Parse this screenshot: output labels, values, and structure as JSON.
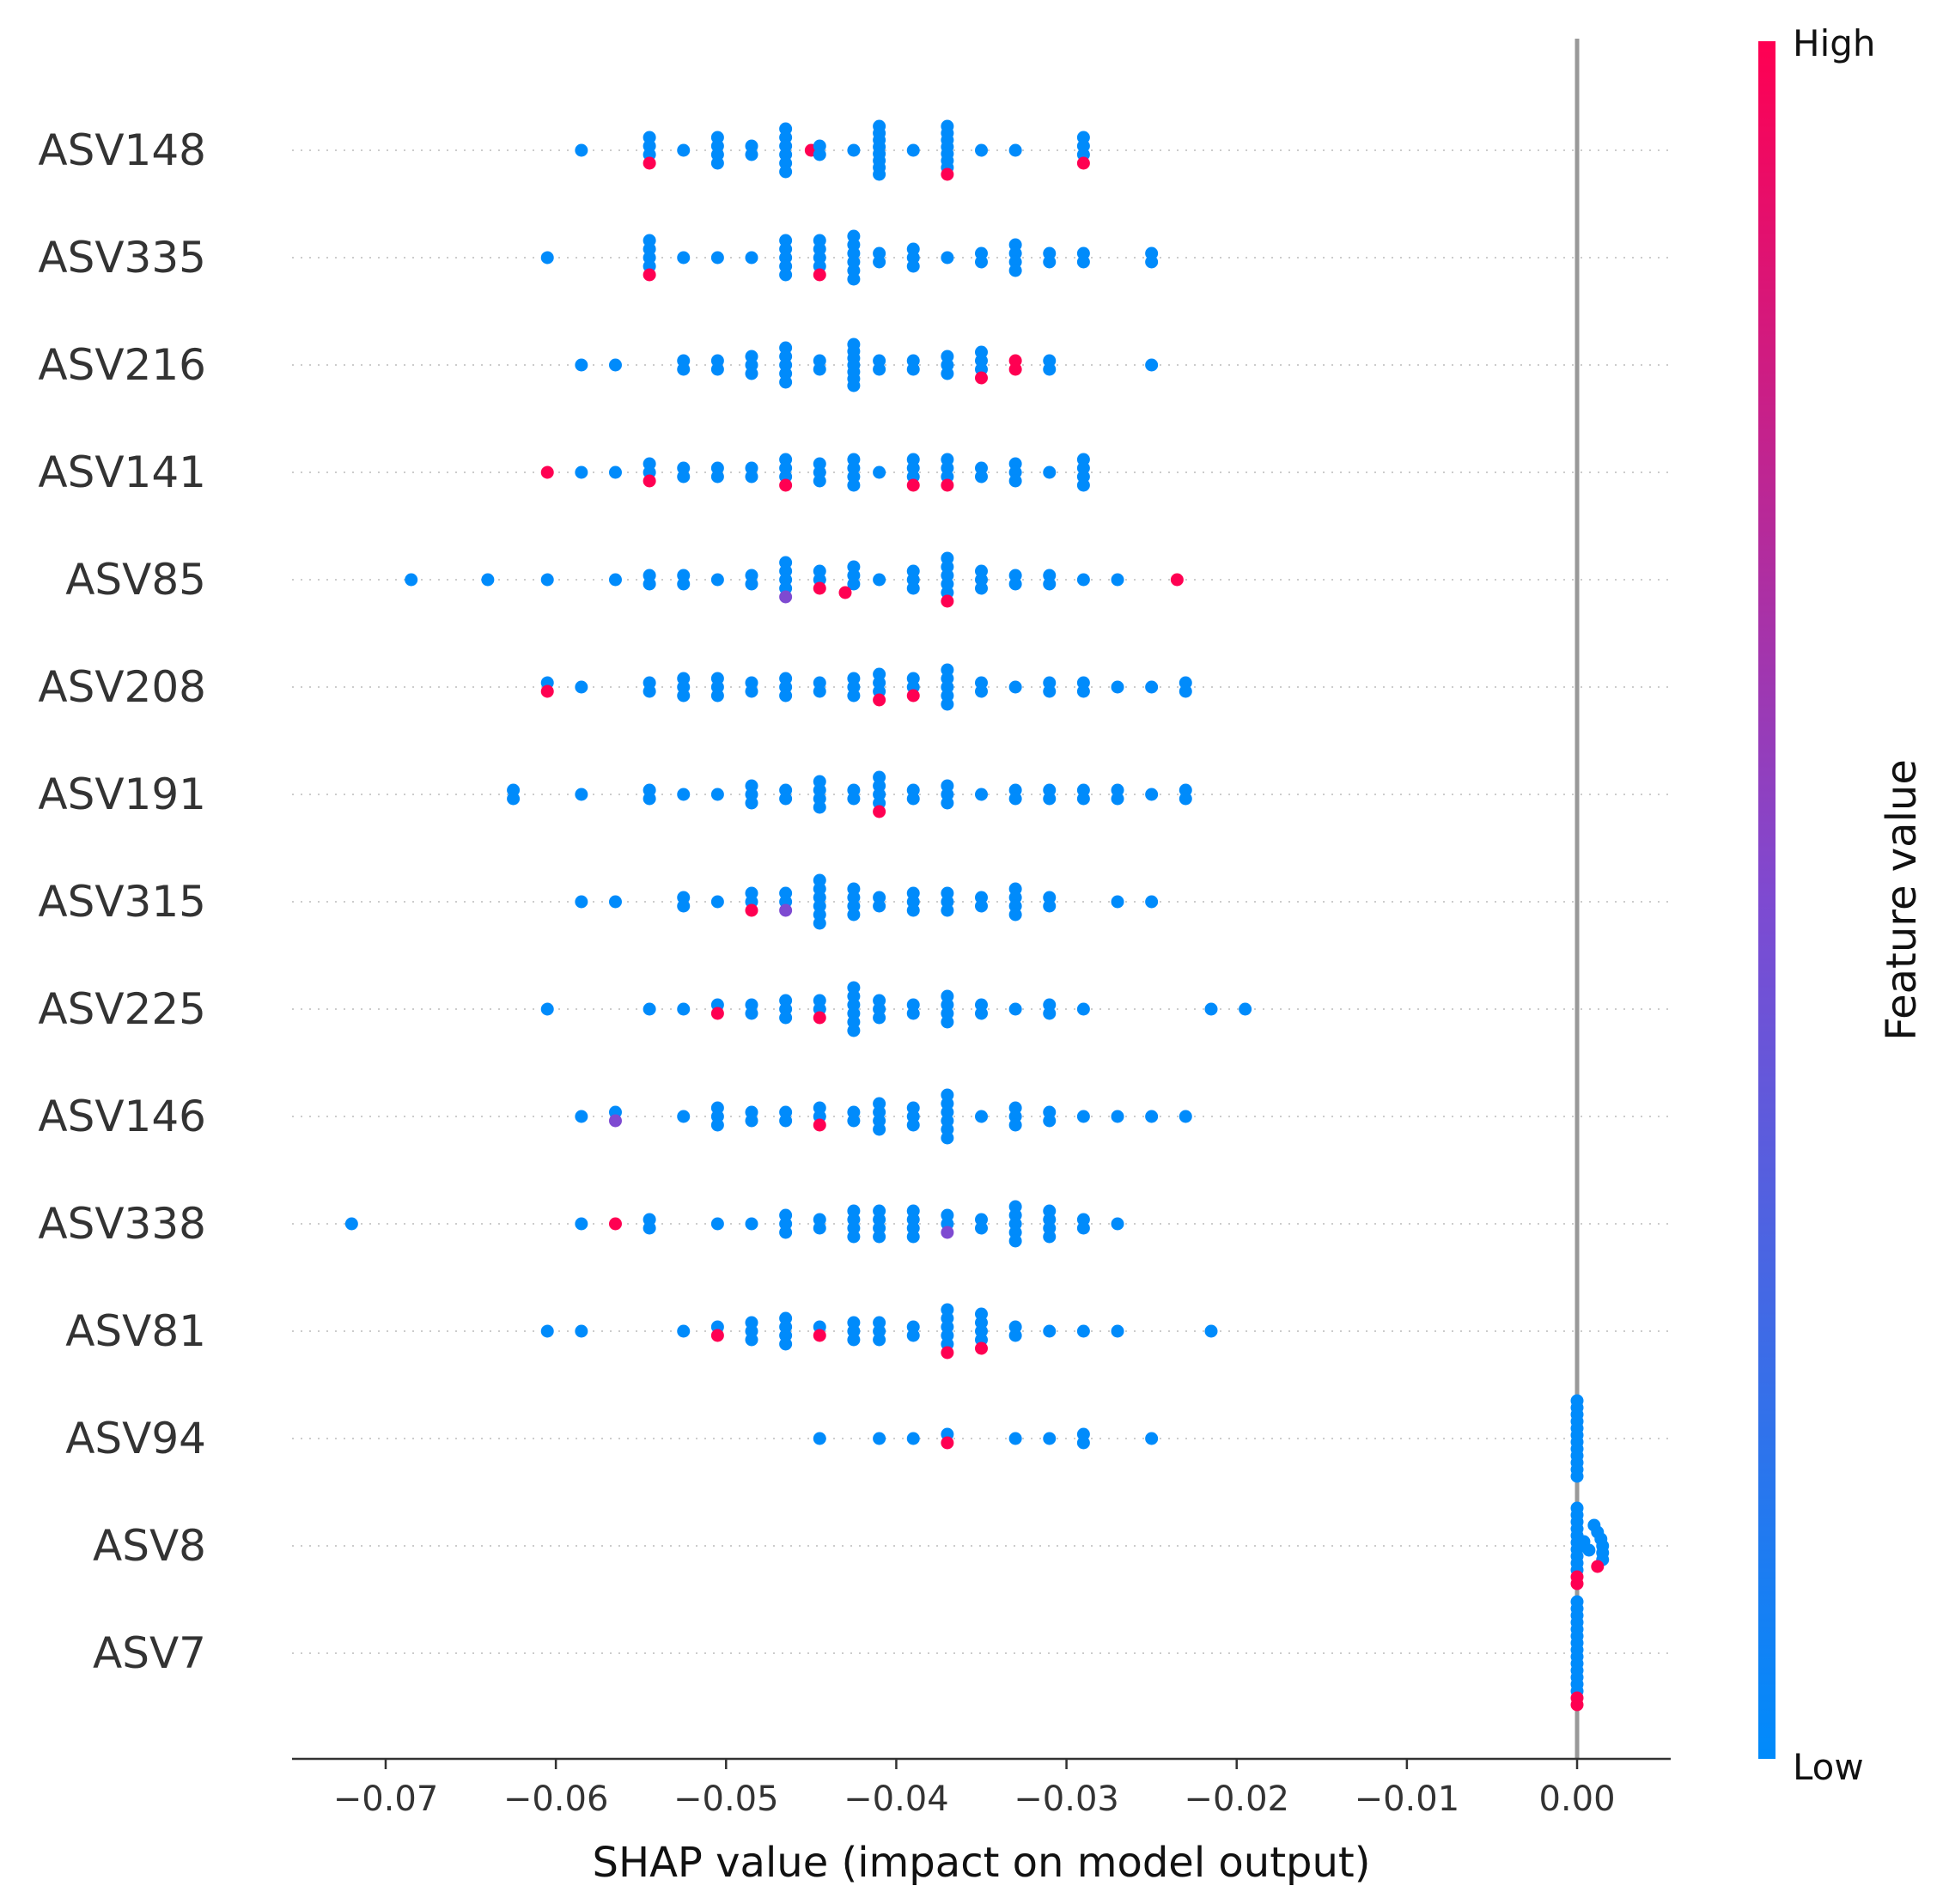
{
  "chart_data": {
    "type": "scatter",
    "subtype": "shap-beeswarm",
    "title": "",
    "xlabel": "SHAP value (impact on model output)",
    "ylabel": "",
    "xlim": [
      -0.0755,
      0.0055
    ],
    "xticks": [
      -0.07,
      -0.06,
      -0.05,
      -0.04,
      -0.03,
      -0.02,
      -0.01,
      0.0
    ],
    "xtick_labels": [
      "−0.07",
      "−0.06",
      "−0.05",
      "−0.04",
      "−0.03",
      "−0.02",
      "−0.01",
      "0.00"
    ],
    "grid": "dotted horizontal line per feature row",
    "zero_line": 0.0,
    "colorbar": {
      "title": "Feature value",
      "high_label": "High",
      "low_label": "Low",
      "low_color": "#008bfb",
      "mid_color": "#7e4ad1",
      "high_color": "#ff0052"
    },
    "features": [
      {
        "name": "ASV148",
        "blue": [
          -0.0585,
          -0.0545,
          -0.0545,
          -0.0545,
          -0.0525,
          -0.0505,
          -0.0505,
          -0.0505,
          -0.0505,
          -0.0485,
          -0.0485,
          -0.0465,
          -0.0465,
          -0.0465,
          -0.0465,
          -0.0465,
          -0.0465,
          -0.0445,
          -0.0445,
          -0.0425,
          -0.041,
          -0.041,
          -0.041,
          -0.041,
          -0.041,
          -0.041,
          -0.041,
          -0.041,
          -0.039,
          -0.037,
          -0.037,
          -0.037,
          -0.037,
          -0.037,
          -0.037,
          -0.037,
          -0.035,
          -0.033,
          -0.029,
          -0.029,
          -0.029
        ],
        "magenta": [],
        "pink": [
          -0.0545,
          -0.045,
          -0.037,
          -0.029
        ]
      },
      {
        "name": "ASV335",
        "blue": [
          -0.0605,
          -0.0545,
          -0.0545,
          -0.0545,
          -0.0545,
          -0.0525,
          -0.0505,
          -0.0485,
          -0.0465,
          -0.0465,
          -0.0465,
          -0.0465,
          -0.0465,
          -0.0445,
          -0.0445,
          -0.0445,
          -0.0445,
          -0.0425,
          -0.0425,
          -0.0425,
          -0.0425,
          -0.0425,
          -0.0425,
          -0.041,
          -0.041,
          -0.039,
          -0.039,
          -0.039,
          -0.037,
          -0.035,
          -0.035,
          -0.033,
          -0.033,
          -0.033,
          -0.033,
          -0.031,
          -0.031,
          -0.029,
          -0.029,
          -0.025,
          -0.025
        ],
        "magenta": [],
        "pink": [
          -0.0545,
          -0.0445
        ]
      },
      {
        "name": "ASV216",
        "blue": [
          -0.0585,
          -0.0565,
          -0.0525,
          -0.0525,
          -0.0505,
          -0.0505,
          -0.0485,
          -0.0485,
          -0.0485,
          -0.0465,
          -0.0465,
          -0.0465,
          -0.0465,
          -0.0465,
          -0.0445,
          -0.0445,
          -0.0425,
          -0.0425,
          -0.0425,
          -0.0425,
          -0.0425,
          -0.0425,
          -0.0425,
          -0.041,
          -0.041,
          -0.039,
          -0.039,
          -0.037,
          -0.037,
          -0.037,
          -0.035,
          -0.035,
          -0.035,
          -0.031,
          -0.031,
          -0.025
        ],
        "magenta": [],
        "pink": [
          -0.035,
          -0.033,
          -0.033
        ]
      },
      {
        "name": "ASV141",
        "blue": [
          -0.0585,
          -0.0565,
          -0.0545,
          -0.0545,
          -0.0525,
          -0.0525,
          -0.0505,
          -0.0505,
          -0.0485,
          -0.0485,
          -0.0465,
          -0.0465,
          -0.0465,
          -0.0445,
          -0.0445,
          -0.0445,
          -0.0425,
          -0.0425,
          -0.0425,
          -0.0425,
          -0.041,
          -0.039,
          -0.039,
          -0.039,
          -0.037,
          -0.037,
          -0.037,
          -0.035,
          -0.035,
          -0.033,
          -0.033,
          -0.033,
          -0.031,
          -0.029,
          -0.029,
          -0.029,
          -0.029
        ],
        "magenta": [],
        "pink": [
          -0.0605,
          -0.0545,
          -0.0465,
          -0.039,
          -0.037
        ]
      },
      {
        "name": "ASV85",
        "blue": [
          -0.0685,
          -0.064,
          -0.0605,
          -0.0565,
          -0.0545,
          -0.0545,
          -0.0525,
          -0.0525,
          -0.0505,
          -0.0485,
          -0.0485,
          -0.0465,
          -0.0465,
          -0.0465,
          -0.0465,
          -0.0445,
          -0.0445,
          -0.0425,
          -0.0425,
          -0.0425,
          -0.041,
          -0.039,
          -0.039,
          -0.039,
          -0.037,
          -0.037,
          -0.037,
          -0.037,
          -0.037,
          -0.035,
          -0.035,
          -0.035,
          -0.033,
          -0.033,
          -0.031,
          -0.031,
          -0.029,
          -0.027
        ],
        "magenta": [
          -0.0465
        ],
        "pink": [
          -0.0445,
          -0.043,
          -0.037,
          -0.0235
        ]
      },
      {
        "name": "ASV208",
        "blue": [
          -0.0605,
          -0.0585,
          -0.0545,
          -0.0545,
          -0.0525,
          -0.0525,
          -0.0525,
          -0.0505,
          -0.0505,
          -0.0505,
          -0.0485,
          -0.0485,
          -0.0465,
          -0.0465,
          -0.0465,
          -0.0445,
          -0.0445,
          -0.0425,
          -0.0425,
          -0.0425,
          -0.041,
          -0.041,
          -0.041,
          -0.039,
          -0.039,
          -0.037,
          -0.037,
          -0.037,
          -0.037,
          -0.037,
          -0.035,
          -0.035,
          -0.033,
          -0.031,
          -0.031,
          -0.029,
          -0.029,
          -0.027,
          -0.025,
          -0.023,
          -0.023
        ],
        "magenta": [],
        "pink": [
          -0.0605,
          -0.041,
          -0.039
        ]
      },
      {
        "name": "ASV191",
        "blue": [
          -0.0625,
          -0.0625,
          -0.0585,
          -0.0545,
          -0.0545,
          -0.0525,
          -0.0505,
          -0.0485,
          -0.0485,
          -0.0485,
          -0.0465,
          -0.0465,
          -0.0445,
          -0.0445,
          -0.0445,
          -0.0445,
          -0.0425,
          -0.0425,
          -0.041,
          -0.041,
          -0.041,
          -0.041,
          -0.039,
          -0.039,
          -0.037,
          -0.037,
          -0.037,
          -0.035,
          -0.033,
          -0.033,
          -0.031,
          -0.031,
          -0.029,
          -0.029,
          -0.027,
          -0.027,
          -0.025,
          -0.023,
          -0.023
        ],
        "magenta": [],
        "pink": [
          -0.041
        ]
      },
      {
        "name": "ASV315",
        "blue": [
          -0.0585,
          -0.0565,
          -0.0525,
          -0.0525,
          -0.0505,
          -0.0485,
          -0.0485,
          -0.0465,
          -0.0465,
          -0.0445,
          -0.0445,
          -0.0445,
          -0.0445,
          -0.0445,
          -0.0445,
          -0.0425,
          -0.0425,
          -0.0425,
          -0.0425,
          -0.041,
          -0.041,
          -0.039,
          -0.039,
          -0.039,
          -0.037,
          -0.037,
          -0.037,
          -0.035,
          -0.035,
          -0.033,
          -0.033,
          -0.033,
          -0.033,
          -0.031,
          -0.031,
          -0.027,
          -0.025
        ],
        "magenta": [
          -0.0465
        ],
        "pink": [
          -0.0485
        ]
      },
      {
        "name": "ASV225",
        "blue": [
          -0.0605,
          -0.0545,
          -0.0525,
          -0.0505,
          -0.0485,
          -0.0485,
          -0.0465,
          -0.0465,
          -0.0465,
          -0.0445,
          -0.0445,
          -0.0425,
          -0.0425,
          -0.0425,
          -0.0425,
          -0.0425,
          -0.0425,
          -0.041,
          -0.041,
          -0.041,
          -0.039,
          -0.039,
          -0.037,
          -0.037,
          -0.037,
          -0.037,
          -0.035,
          -0.035,
          -0.033,
          -0.031,
          -0.031,
          -0.029,
          -0.0215,
          -0.0195
        ],
        "magenta": [],
        "pink": [
          -0.0505,
          -0.0445
        ]
      },
      {
        "name": "ASV146",
        "blue": [
          -0.0585,
          -0.0565,
          -0.0525,
          -0.0505,
          -0.0505,
          -0.0505,
          -0.0485,
          -0.0485,
          -0.0465,
          -0.0465,
          -0.0445,
          -0.0445,
          -0.0425,
          -0.0425,
          -0.041,
          -0.041,
          -0.041,
          -0.041,
          -0.039,
          -0.039,
          -0.039,
          -0.037,
          -0.037,
          -0.037,
          -0.037,
          -0.037,
          -0.037,
          -0.035,
          -0.033,
          -0.033,
          -0.033,
          -0.031,
          -0.031,
          -0.029,
          -0.027,
          -0.025,
          -0.023
        ],
        "magenta": [
          -0.0565
        ],
        "pink": [
          -0.0445
        ]
      },
      {
        "name": "ASV338",
        "blue": [
          -0.072,
          -0.0585,
          -0.0545,
          -0.0545,
          -0.0505,
          -0.0485,
          -0.0465,
          -0.0465,
          -0.0465,
          -0.0445,
          -0.0445,
          -0.0425,
          -0.0425,
          -0.0425,
          -0.0425,
          -0.041,
          -0.041,
          -0.041,
          -0.041,
          -0.039,
          -0.039,
          -0.039,
          -0.039,
          -0.037,
          -0.037,
          -0.035,
          -0.035,
          -0.033,
          -0.033,
          -0.033,
          -0.033,
          -0.033,
          -0.031,
          -0.031,
          -0.031,
          -0.031,
          -0.029,
          -0.029,
          -0.027
        ],
        "magenta": [
          -0.037
        ],
        "pink": [
          -0.0565
        ]
      },
      {
        "name": "ASV81",
        "blue": [
          -0.0605,
          -0.0585,
          -0.0525,
          -0.0505,
          -0.0485,
          -0.0485,
          -0.0485,
          -0.0465,
          -0.0465,
          -0.0465,
          -0.0465,
          -0.0445,
          -0.0425,
          -0.0425,
          -0.0425,
          -0.041,
          -0.041,
          -0.041,
          -0.039,
          -0.039,
          -0.037,
          -0.037,
          -0.037,
          -0.037,
          -0.037,
          -0.035,
          -0.035,
          -0.035,
          -0.035,
          -0.033,
          -0.033,
          -0.031,
          -0.029,
          -0.027,
          -0.0215
        ],
        "magenta": [],
        "pink": [
          -0.0505,
          -0.0445,
          -0.037,
          -0.035
        ]
      },
      {
        "name": "ASV94",
        "blue": [
          -0.0445,
          -0.041,
          -0.039,
          -0.037,
          -0.033,
          -0.031,
          -0.029,
          -0.029,
          -0.025,
          0.0,
          0.0,
          0.0,
          0.0,
          0.0,
          0.0,
          0.0,
          0.0,
          0.0,
          0.0,
          0.0,
          0.0
        ],
        "magenta": [],
        "pink": [
          -0.037
        ]
      },
      {
        "name": "ASV8",
        "blue": [
          0.0,
          0.0,
          0.0,
          0.0,
          0.0,
          0.0,
          0.0,
          0.0,
          0.0,
          0.0,
          0.0004,
          0.0007,
          0.001,
          0.0012,
          0.0014,
          0.0015,
          0.0015,
          0.0015
        ],
        "magenta": [],
        "pink": [
          0.0,
          0.0,
          0.0012
        ]
      },
      {
        "name": "ASV7",
        "blue": [
          0.0,
          0.0,
          0.0,
          0.0,
          0.0,
          0.0,
          0.0,
          0.0,
          0.0,
          0.0,
          0.0,
          0.0,
          0.0,
          0.0
        ],
        "magenta": [],
        "pink": [
          0.0,
          0.0
        ]
      }
    ]
  }
}
